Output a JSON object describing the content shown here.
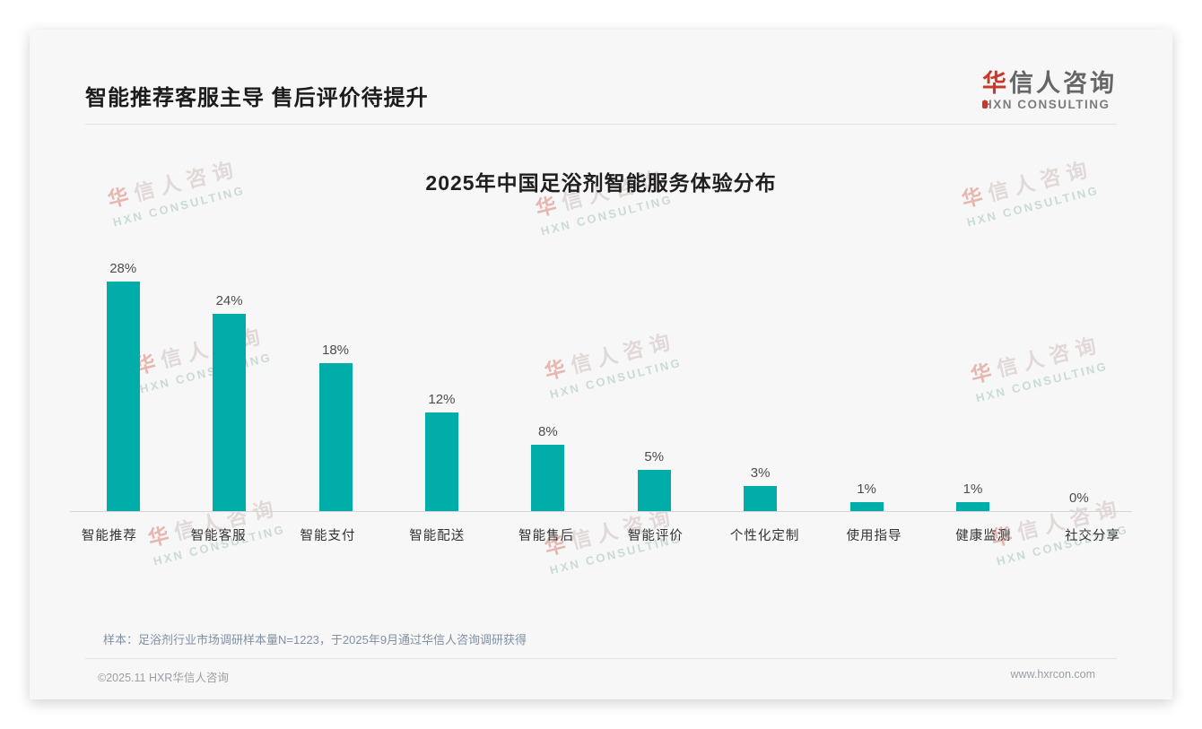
{
  "header": {
    "title": "智能推荐客服主导 售后评价待提升"
  },
  "logo": {
    "cn_red": "华",
    "cn_rest": "信人咨询",
    "en": "HXN CONSULTING"
  },
  "watermark": {
    "cn_red": "华",
    "cn_rest": "信人咨询",
    "en": "HXN CONSULTING"
  },
  "chart_data": {
    "type": "bar",
    "title": "2025年中国足浴剂智能服务体验分布",
    "categories": [
      "智能推荐",
      "智能客服",
      "智能支付",
      "智能配送",
      "智能售后",
      "智能评价",
      "个性化定制",
      "使用指导",
      "健康监测",
      "社交分享"
    ],
    "values": [
      28,
      24,
      18,
      12,
      8,
      5,
      3,
      1,
      1,
      0
    ],
    "value_labels": [
      "28%",
      "24%",
      "18%",
      "12%",
      "8%",
      "5%",
      "3%",
      "1%",
      "1%",
      "0%"
    ],
    "unit": "%",
    "ylim": [
      0,
      30
    ],
    "grid": false,
    "legend": false,
    "bar_color": "#00ada8",
    "value_label_position": "above-bar"
  },
  "note": "样本：足浴剂行业市场调研样本量N=1223，于2025年9月通过华信人咨询调研获得",
  "footer": {
    "left": "©2025.11 HXR华信人咨询",
    "right": "www.hxrcon.com"
  },
  "colors": {
    "bar_teal": "#00ada8",
    "accent_red": "#c9382b"
  }
}
